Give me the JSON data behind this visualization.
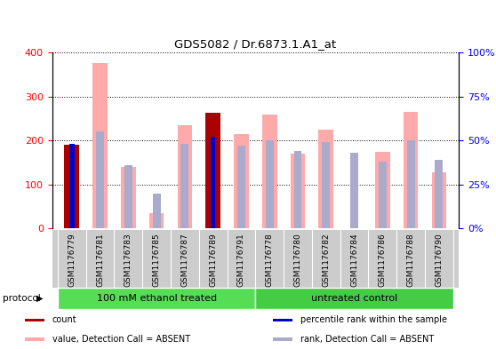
{
  "title": "GDS5082 / Dr.6873.1.A1_at",
  "samples": [
    "GSM1176779",
    "GSM1176781",
    "GSM1176783",
    "GSM1176785",
    "GSM1176787",
    "GSM1176789",
    "GSM1176791",
    "GSM1176778",
    "GSM1176780",
    "GSM1176782",
    "GSM1176784",
    "GSM1176786",
    "GSM1176788",
    "GSM1176790"
  ],
  "value_absent": [
    0,
    375,
    140,
    35,
    235,
    0,
    215,
    258,
    170,
    225,
    0,
    175,
    265,
    128
  ],
  "rank_absent_pct": [
    0,
    55,
    36,
    20,
    48,
    51,
    47,
    50,
    44,
    49,
    43,
    38,
    50,
    39
  ],
  "count_value": [
    190,
    0,
    0,
    0,
    0,
    262,
    0,
    0,
    0,
    0,
    0,
    0,
    0,
    0
  ],
  "percentile_rank_pct": [
    48,
    0,
    0,
    0,
    0,
    52,
    0,
    0,
    0,
    0,
    0,
    0,
    0,
    0
  ],
  "has_count": [
    true,
    false,
    false,
    false,
    false,
    true,
    false,
    false,
    false,
    false,
    false,
    false,
    false,
    false
  ],
  "protocol_groups": [
    {
      "label": "100 mM ethanol treated",
      "start": 0,
      "end": 7,
      "color": "#55dd55"
    },
    {
      "label": "untreated control",
      "start": 7,
      "end": 14,
      "color": "#44cc44"
    }
  ],
  "left_ylim": [
    0,
    400
  ],
  "right_ylim": [
    0,
    100
  ],
  "left_yticks": [
    0,
    100,
    200,
    300,
    400
  ],
  "right_yticks": [
    0,
    25,
    50,
    75,
    100
  ],
  "right_yticklabels": [
    "0%",
    "25%",
    "50%",
    "75%",
    "100%"
  ],
  "bar_width": 0.35,
  "color_count": "#aa0000",
  "color_percentile": "#0000cc",
  "color_value_absent": "#ffaaaa",
  "color_rank_absent": "#aaaacc",
  "legend_items": [
    {
      "color": "#aa0000",
      "label": "count"
    },
    {
      "color": "#0000cc",
      "label": "percentile rank within the sample"
    },
    {
      "color": "#ffaaaa",
      "label": "value, Detection Call = ABSENT"
    },
    {
      "color": "#aaaacc",
      "label": "rank, Detection Call = ABSENT"
    }
  ],
  "grid_color": "#888888",
  "sample_bg_color": "#cccccc"
}
